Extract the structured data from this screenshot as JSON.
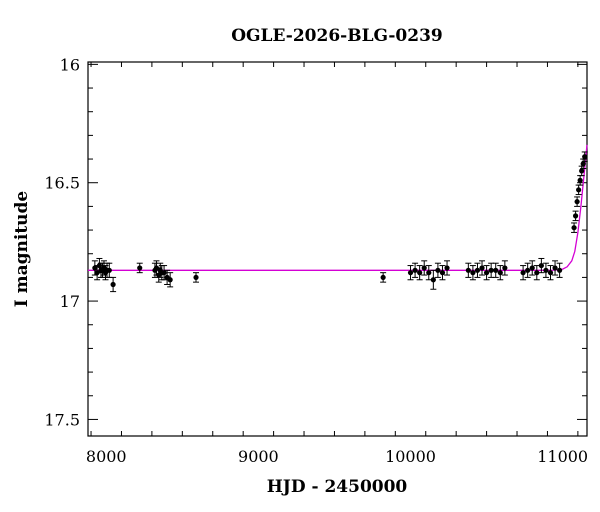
{
  "chart_data": {
    "type": "scatter",
    "title": "OGLE-2026-BLG-0239",
    "xlabel": "HJD - 2450000",
    "ylabel": "I magnitude",
    "xlim": [
      7880,
      11160
    ],
    "ylim": [
      17.57,
      15.99
    ],
    "y_inverted": true,
    "x_ticks": [
      8000,
      9000,
      10000,
      11000
    ],
    "x_tick_labels": [
      "8000",
      "9000",
      "10000",
      "11000"
    ],
    "y_ticks": [
      16.0,
      16.5,
      17.0,
      17.5
    ],
    "y_tick_labels": [
      "16",
      "16.5",
      "17",
      "17.5"
    ],
    "grid": false,
    "colors": {
      "points": "#000000",
      "model": "#d400d4"
    },
    "series": [
      {
        "kind": "points_with_errorbars",
        "x": [
          7925,
          7940,
          7955,
          7965,
          7975,
          7985,
          7995,
          8005,
          8020,
          8045,
          8220,
          8320,
          8330,
          8345,
          8355,
          8365,
          8380,
          8400,
          8420,
          8590,
          9820,
          10000,
          10030,
          10060,
          10090,
          10120,
          10150,
          10180,
          10210,
          10240,
          10380,
          10410,
          10440,
          10470,
          10500,
          10530,
          10560,
          10590,
          10620,
          10740,
          10770,
          10800,
          10830,
          10860,
          10890,
          10920,
          10950,
          10980,
          11075,
          11085,
          11095,
          11105,
          11115,
          11125,
          11135,
          11145
        ],
        "y": [
          16.86,
          16.88,
          16.85,
          16.87,
          16.87,
          16.86,
          16.88,
          16.87,
          16.87,
          16.93,
          16.86,
          16.87,
          16.86,
          16.89,
          16.87,
          16.88,
          16.88,
          16.9,
          16.91,
          16.9,
          16.9,
          16.88,
          16.87,
          16.88,
          16.86,
          16.88,
          16.91,
          16.87,
          16.88,
          16.86,
          16.87,
          16.88,
          16.87,
          16.86,
          16.88,
          16.87,
          16.87,
          16.88,
          16.86,
          16.88,
          16.87,
          16.86,
          16.88,
          16.85,
          16.87,
          16.88,
          16.86,
          16.87,
          16.69,
          16.64,
          16.58,
          16.53,
          16.49,
          16.45,
          16.42,
          16.39
        ],
        "yerr": [
          0.03,
          0.03,
          0.03,
          0.03,
          0.03,
          0.03,
          0.03,
          0.03,
          0.03,
          0.03,
          0.02,
          0.03,
          0.03,
          0.03,
          0.03,
          0.03,
          0.03,
          0.03,
          0.03,
          0.02,
          0.02,
          0.03,
          0.03,
          0.03,
          0.03,
          0.03,
          0.04,
          0.03,
          0.03,
          0.03,
          0.03,
          0.03,
          0.03,
          0.03,
          0.03,
          0.03,
          0.03,
          0.03,
          0.03,
          0.03,
          0.03,
          0.03,
          0.03,
          0.03,
          0.03,
          0.03,
          0.03,
          0.03,
          0.02,
          0.02,
          0.02,
          0.02,
          0.02,
          0.02,
          0.02,
          0.02
        ]
      },
      {
        "kind": "model_curve",
        "x": [
          7880,
          9000,
          10000,
          10900,
          10950,
          11000,
          11030,
          11060,
          11080,
          11100,
          11120,
          11140,
          11160
        ],
        "y": [
          16.87,
          16.87,
          16.87,
          16.87,
          16.869,
          16.865,
          16.855,
          16.83,
          16.79,
          16.71,
          16.6,
          16.47,
          16.34
        ]
      }
    ]
  }
}
